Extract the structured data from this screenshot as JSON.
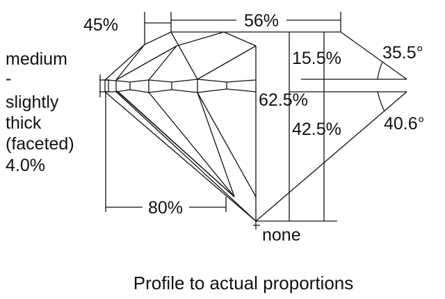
{
  "diagram": {
    "crown_height_label": "45%",
    "table_label": "56%",
    "crown_height_pct_label": "15.5%",
    "crown_angle_label": "35.5°",
    "total_depth_label": "62.5%",
    "pavilion_depth_label": "42.5%",
    "pavilion_angle_label": "40.6°",
    "lower_half_label": "80%",
    "culet_label": "none",
    "girdle_lines": [
      "medium",
      "-",
      "slightly",
      "thick",
      "(faceted)",
      "4.0%"
    ],
    "caption": "Profile to actual proportions"
  }
}
